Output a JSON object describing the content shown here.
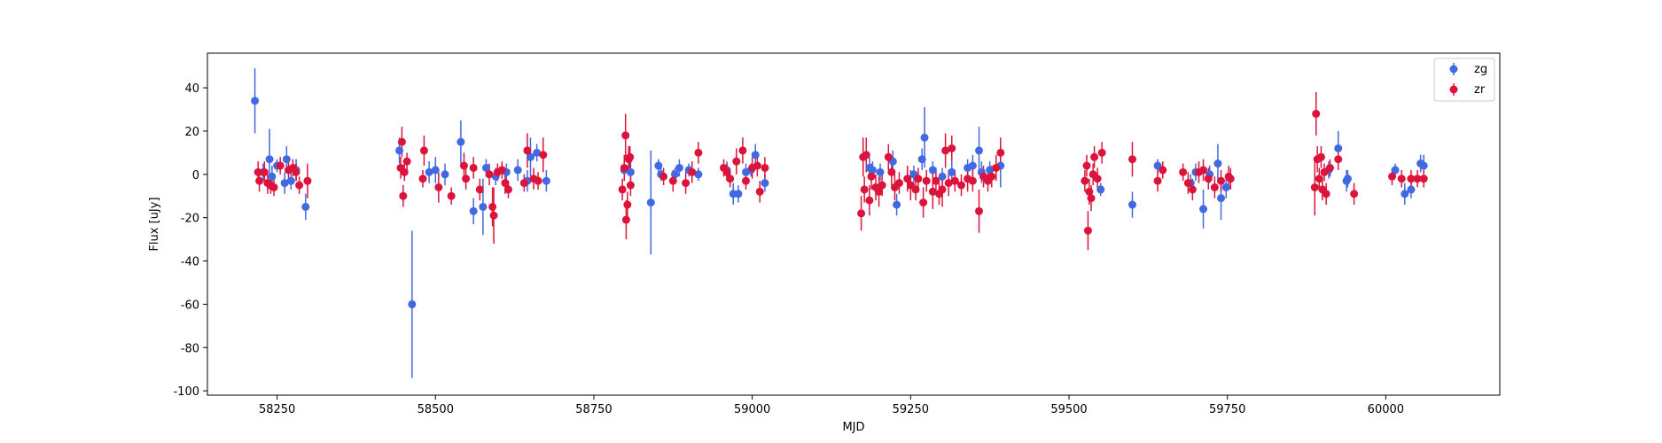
{
  "chart_data": {
    "type": "scatter",
    "xlabel": "MJD",
    "ylabel": "Flux [uJy]",
    "xlim": [
      58140,
      60180
    ],
    "ylim": [
      -102,
      56
    ],
    "xticks": [
      58250,
      58500,
      58750,
      59000,
      59250,
      59500,
      59750,
      60000
    ],
    "yticks": [
      -100,
      -80,
      -60,
      -40,
      -20,
      0,
      20,
      40
    ],
    "grid": false,
    "legend_position": "top-right",
    "series": [
      {
        "name": "zg",
        "color": "#4169E1",
        "points": [
          [
            58215,
            34,
            15
          ],
          [
            58228,
            1,
            4
          ],
          [
            58238,
            7,
            14
          ],
          [
            58242,
            -1,
            5
          ],
          [
            58250,
            4,
            3
          ],
          [
            58262,
            -4,
            5
          ],
          [
            58265,
            7,
            6
          ],
          [
            58272,
            -3,
            4
          ],
          [
            58280,
            2,
            5
          ],
          [
            58295,
            -15,
            6
          ],
          [
            58443,
            11,
            6
          ],
          [
            58463,
            -60,
            34
          ],
          [
            58490,
            1,
            5
          ],
          [
            58500,
            2,
            6
          ],
          [
            58515,
            0,
            5
          ],
          [
            58540,
            15,
            10
          ],
          [
            58560,
            -17,
            6
          ],
          [
            58575,
            -15,
            13
          ],
          [
            58580,
            3,
            4
          ],
          [
            58595,
            -1,
            4
          ],
          [
            58612,
            1,
            4
          ],
          [
            58630,
            2,
            5
          ],
          [
            58645,
            -3,
            5
          ],
          [
            58650,
            8,
            9
          ],
          [
            58660,
            10,
            4
          ],
          [
            58675,
            -3,
            5
          ],
          [
            58798,
            2,
            5
          ],
          [
            58808,
            1,
            5
          ],
          [
            58840,
            -13,
            24
          ],
          [
            58852,
            4,
            3
          ],
          [
            58856,
            0,
            3
          ],
          [
            58878,
            0,
            3
          ],
          [
            58885,
            3,
            4
          ],
          [
            58900,
            2,
            3
          ],
          [
            58915,
            0,
            3
          ],
          [
            58960,
            2,
            4
          ],
          [
            58970,
            -9,
            5
          ],
          [
            58978,
            -9,
            4
          ],
          [
            58990,
            1,
            4
          ],
          [
            58998,
            2,
            3
          ],
          [
            59005,
            9,
            5
          ],
          [
            59020,
            -4,
            4
          ],
          [
            59185,
            3,
            5
          ],
          [
            59190,
            2,
            4
          ],
          [
            59202,
            1,
            4
          ],
          [
            59222,
            6,
            5
          ],
          [
            59228,
            -14,
            5
          ],
          [
            59255,
            0,
            4
          ],
          [
            59268,
            7,
            5
          ],
          [
            59272,
            17,
            14
          ],
          [
            59285,
            2,
            4
          ],
          [
            59300,
            -1,
            4
          ],
          [
            59315,
            1,
            5
          ],
          [
            59340,
            3,
            4
          ],
          [
            59348,
            4,
            5
          ],
          [
            59358,
            11,
            11
          ],
          [
            59362,
            1,
            5
          ],
          [
            59375,
            2,
            4
          ],
          [
            59392,
            4,
            10
          ],
          [
            59550,
            -7,
            3
          ],
          [
            59600,
            -14,
            6
          ],
          [
            59640,
            4,
            3
          ],
          [
            59692,
            -4,
            4
          ],
          [
            59700,
            1,
            4
          ],
          [
            59712,
            -16,
            9
          ],
          [
            59722,
            0,
            4
          ],
          [
            59735,
            5,
            9
          ],
          [
            59740,
            -11,
            10
          ],
          [
            59748,
            -6,
            5
          ],
          [
            59910,
            2,
            4
          ],
          [
            59925,
            12,
            8
          ],
          [
            59938,
            -3,
            5
          ],
          [
            59940,
            -2,
            4
          ],
          [
            60015,
            2,
            3
          ],
          [
            60030,
            -9,
            5
          ],
          [
            60040,
            -7,
            4
          ],
          [
            60055,
            5,
            4
          ],
          [
            60060,
            4,
            5
          ]
        ]
      },
      {
        "name": "zr",
        "color": "#DC143C",
        "points": [
          [
            58220,
            1,
            5
          ],
          [
            58222,
            -3,
            5
          ],
          [
            58230,
            1,
            5
          ],
          [
            58235,
            -4,
            5
          ],
          [
            58240,
            -5,
            4
          ],
          [
            58245,
            -6,
            4
          ],
          [
            58255,
            4,
            4
          ],
          [
            58268,
            2,
            4
          ],
          [
            58275,
            3,
            4
          ],
          [
            58280,
            1,
            4
          ],
          [
            58285,
            -5,
            4
          ],
          [
            58298,
            -3,
            8
          ],
          [
            58445,
            3,
            5
          ],
          [
            58447,
            15,
            7
          ],
          [
            58449,
            -10,
            5
          ],
          [
            58451,
            1,
            4
          ],
          [
            58455,
            6,
            4
          ],
          [
            58480,
            -2,
            4
          ],
          [
            58482,
            11,
            7
          ],
          [
            58505,
            -6,
            7
          ],
          [
            58525,
            -10,
            4
          ],
          [
            58545,
            4,
            6
          ],
          [
            58548,
            -2,
            5
          ],
          [
            58560,
            3,
            5
          ],
          [
            58570,
            -7,
            5
          ],
          [
            58585,
            0,
            5
          ],
          [
            58590,
            -15,
            9
          ],
          [
            58592,
            -19,
            13
          ],
          [
            58598,
            1,
            4
          ],
          [
            58605,
            2,
            4
          ],
          [
            58610,
            -4,
            5
          ],
          [
            58615,
            -7,
            4
          ],
          [
            58640,
            -4,
            4
          ],
          [
            58645,
            11,
            8
          ],
          [
            58655,
            -2,
            5
          ],
          [
            58662,
            -3,
            4
          ],
          [
            58670,
            9,
            8
          ],
          [
            58795,
            -7,
            5
          ],
          [
            58798,
            3,
            6
          ],
          [
            58800,
            18,
            10
          ],
          [
            58801,
            -21,
            9
          ],
          [
            58803,
            -14,
            6
          ],
          [
            58805,
            7,
            6
          ],
          [
            58807,
            8,
            5
          ],
          [
            58808,
            -5,
            5
          ],
          [
            58860,
            -1,
            4
          ],
          [
            58875,
            -3,
            5
          ],
          [
            58895,
            -4,
            5
          ],
          [
            58905,
            1,
            5
          ],
          [
            58915,
            10,
            5
          ],
          [
            58955,
            3,
            4
          ],
          [
            58960,
            1,
            4
          ],
          [
            58965,
            -2,
            4
          ],
          [
            58975,
            6,
            6
          ],
          [
            58985,
            11,
            6
          ],
          [
            58990,
            -3,
            4
          ],
          [
            59000,
            3,
            5
          ],
          [
            59008,
            4,
            5
          ],
          [
            59012,
            -8,
            5
          ],
          [
            59020,
            3,
            5
          ],
          [
            59172,
            -18,
            8
          ],
          [
            59175,
            8,
            9
          ],
          [
            59177,
            -7,
            6
          ],
          [
            59180,
            9,
            8
          ],
          [
            59185,
            -12,
            7
          ],
          [
            59188,
            -1,
            6
          ],
          [
            59195,
            -6,
            6
          ],
          [
            59200,
            -8,
            7
          ],
          [
            59205,
            -5,
            5
          ],
          [
            59215,
            8,
            6
          ],
          [
            59220,
            1,
            6
          ],
          [
            59225,
            -6,
            6
          ],
          [
            59232,
            -4,
            5
          ],
          [
            59245,
            -2,
            6
          ],
          [
            59250,
            -5,
            7
          ],
          [
            59258,
            -7,
            5
          ],
          [
            59262,
            -2,
            5
          ],
          [
            59270,
            -13,
            7
          ],
          [
            59275,
            -3,
            5
          ],
          [
            59285,
            -8,
            8
          ],
          [
            59290,
            -3,
            6
          ],
          [
            59295,
            -9,
            5
          ],
          [
            59300,
            -7,
            8
          ],
          [
            59305,
            11,
            8
          ],
          [
            59310,
            -4,
            6
          ],
          [
            59315,
            12,
            6
          ],
          [
            59320,
            -3,
            5
          ],
          [
            59330,
            -5,
            5
          ],
          [
            59340,
            -2,
            6
          ],
          [
            59348,
            -3,
            5
          ],
          [
            59358,
            -17,
            10
          ],
          [
            59365,
            -1,
            5
          ],
          [
            59372,
            -3,
            5
          ],
          [
            59378,
            -1,
            5
          ],
          [
            59385,
            3,
            6
          ],
          [
            59392,
            10,
            7
          ],
          [
            59525,
            -3,
            5
          ],
          [
            59528,
            4,
            5
          ],
          [
            59530,
            -26,
            9
          ],
          [
            59532,
            -8,
            6
          ],
          [
            59535,
            -11,
            6
          ],
          [
            59538,
            0,
            5
          ],
          [
            59540,
            8,
            5
          ],
          [
            59545,
            -2,
            5
          ],
          [
            59552,
            10,
            5
          ],
          [
            59600,
            7,
            8
          ],
          [
            59640,
            -3,
            5
          ],
          [
            59648,
            2,
            4
          ],
          [
            59680,
            1,
            4
          ],
          [
            59688,
            -4,
            5
          ],
          [
            59695,
            -7,
            5
          ],
          [
            59705,
            1,
            5
          ],
          [
            59712,
            2,
            5
          ],
          [
            59720,
            -2,
            5
          ],
          [
            59730,
            -6,
            5
          ],
          [
            59740,
            -3,
            5
          ],
          [
            59752,
            -1,
            5
          ],
          [
            59755,
            -2,
            5
          ],
          [
            59888,
            -6,
            13
          ],
          [
            59890,
            28,
            10
          ],
          [
            59892,
            7,
            6
          ],
          [
            59895,
            -2,
            5
          ],
          [
            59898,
            8,
            5
          ],
          [
            59900,
            -7,
            5
          ],
          [
            59903,
            1,
            4
          ],
          [
            59906,
            -9,
            5
          ],
          [
            59912,
            3,
            4
          ],
          [
            59925,
            7,
            5
          ],
          [
            59950,
            -9,
            5
          ],
          [
            60010,
            -1,
            4
          ],
          [
            60025,
            -2,
            4
          ],
          [
            60040,
            -2,
            4
          ],
          [
            60050,
            -2,
            4
          ],
          [
            60060,
            -2,
            4
          ]
        ]
      }
    ]
  }
}
